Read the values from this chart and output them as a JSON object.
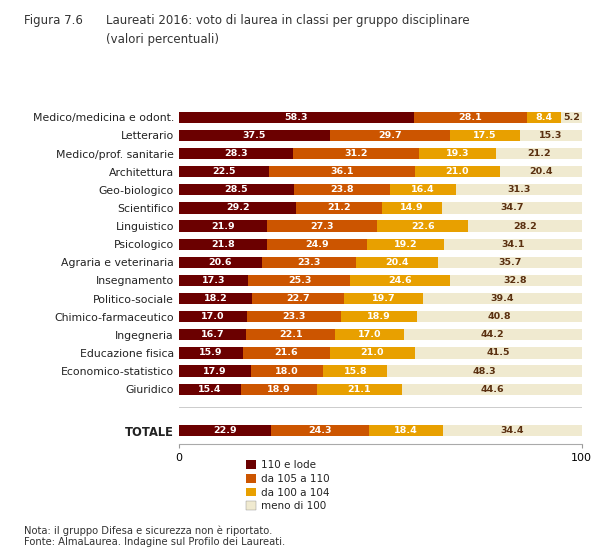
{
  "title_fig": "Figura 7.6",
  "title_main": "Laureati 2016: voto di laurea in classi per gruppo disciplinare",
  "title_sub": "(valori percentuali)",
  "categories": [
    "Medico/medicina e odont.",
    "Letterario",
    "Medico/prof. sanitarie",
    "Architettura",
    "Geo-biologico",
    "Scientifico",
    "Linguistico",
    "Psicologico",
    "Agraria e veterinaria",
    "Insegnamento",
    "Politico-sociale",
    "Chimico-farmaceutico",
    "Ingegneria",
    "Educazione fisica",
    "Economico-statistico",
    "Giuridico"
  ],
  "totale": "TOTALE",
  "data": [
    [
      58.3,
      28.1,
      8.4,
      5.2
    ],
    [
      37.5,
      29.7,
      17.5,
      15.3
    ],
    [
      28.3,
      31.2,
      19.3,
      21.2
    ],
    [
      22.5,
      36.1,
      21.0,
      20.4
    ],
    [
      28.5,
      23.8,
      16.4,
      31.3
    ],
    [
      29.2,
      21.2,
      14.9,
      34.7
    ],
    [
      21.9,
      27.3,
      22.6,
      28.2
    ],
    [
      21.8,
      24.9,
      19.2,
      34.1
    ],
    [
      20.6,
      23.3,
      20.4,
      35.7
    ],
    [
      17.3,
      25.3,
      24.6,
      32.8
    ],
    [
      18.2,
      22.7,
      19.7,
      39.4
    ],
    [
      17.0,
      23.3,
      18.9,
      40.8
    ],
    [
      16.7,
      22.1,
      17.0,
      44.2
    ],
    [
      15.9,
      21.6,
      21.0,
      41.5
    ],
    [
      17.9,
      18.0,
      15.8,
      48.3
    ],
    [
      15.4,
      18.9,
      21.1,
      44.6
    ]
  ],
  "totale_data": [
    22.9,
    24.3,
    18.4,
    34.4
  ],
  "colors": [
    "#6b0000",
    "#cc5500",
    "#e8a000",
    "#f0ead0"
  ],
  "legend_labels": [
    "110 e lode",
    "da 105 a 110",
    "da 100 a 104",
    "meno di 100"
  ],
  "xlim": [
    0,
    100
  ],
  "bar_height": 0.62,
  "value_fontsize": 6.8,
  "label_fontsize": 7.8,
  "note1": "Nota: il gruppo Difesa e sicurezza non è riportato.",
  "note2": "Fonte: AlmaLaurea. Indagine sul Profilo dei Laureati.",
  "background_color": "#ffffff",
  "text_color_dark": "#5a3010",
  "text_color_light": "#ffffff"
}
